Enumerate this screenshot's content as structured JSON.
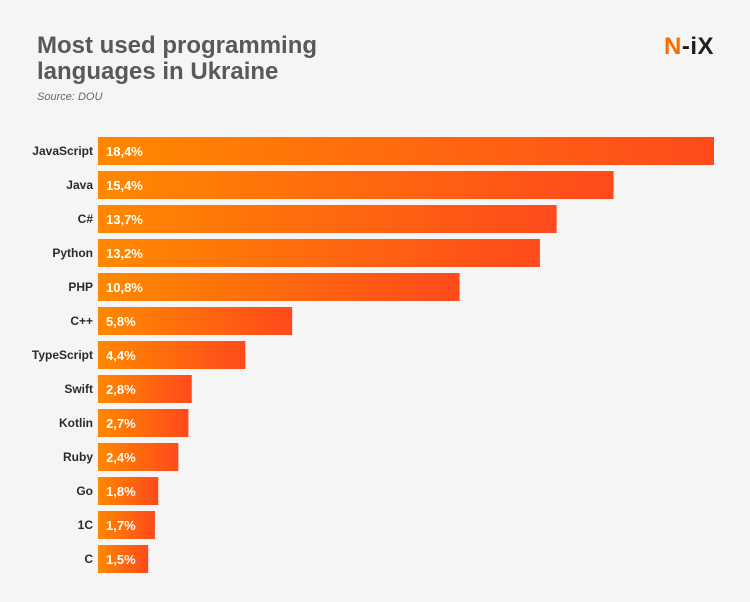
{
  "header": {
    "title": "Most used programming languages in Ukraine",
    "source": "Source: DOU",
    "logo_n": "N",
    "logo_rest": "-iX"
  },
  "colors": {
    "bar_start": "#ff8800",
    "bar_end": "#ff4a1c",
    "label_text": "#2b2b2b",
    "value_text": "#ffffff"
  },
  "chart_data": {
    "type": "bar",
    "orientation": "horizontal",
    "categories": [
      "JavaScript",
      "Java",
      "C#",
      "Python",
      "PHP",
      "C++",
      "TypeScript",
      "Swift",
      "Kotlin",
      "Ruby",
      "Go",
      "1C",
      "C"
    ],
    "values": [
      18.4,
      15.4,
      13.7,
      13.2,
      10.8,
      5.8,
      4.4,
      2.8,
      2.7,
      2.4,
      1.8,
      1.7,
      1.5
    ],
    "value_labels": [
      "18,4%",
      "15,4%",
      "13,7%",
      "13,2%",
      "10,8%",
      "5,8%",
      "4,4%",
      "2,8%",
      "2,7%",
      "2,4%",
      "1,8%",
      "1,7%",
      "1,5%"
    ],
    "title": "Most used programming languages in Ukraine",
    "xlabel": "",
    "ylabel": "",
    "xlim": [
      0,
      18.4
    ],
    "grid": false,
    "legend": "none"
  }
}
